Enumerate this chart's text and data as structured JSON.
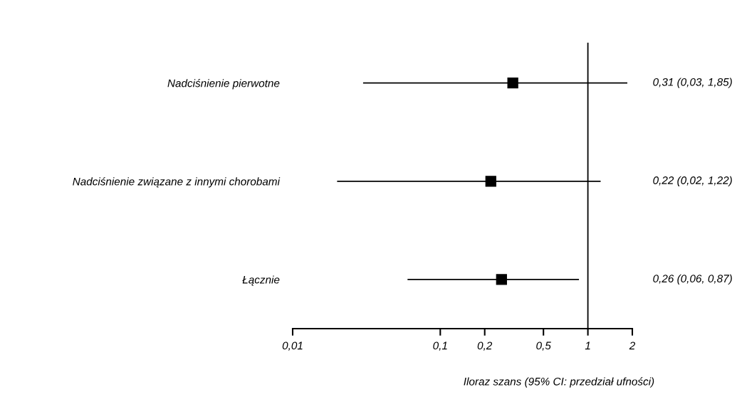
{
  "chart_data": {
    "type": "scatter",
    "orientation": "horizontal",
    "xlabel": "Iloraz szans (95% CI: przedział ufności)",
    "categories": [
      "Nadciśnienie pierwotne",
      "Nadciśnienie związane z innymi chorobami",
      "Łącznie"
    ],
    "values": [
      0.31,
      0.22,
      0.26
    ],
    "errors": [
      [
        0.03,
        1.85
      ],
      [
        0.02,
        1.22
      ],
      [
        0.06,
        0.87
      ]
    ],
    "value_labels": [
      "0,31 (0,03, 1,85)",
      "0,22 (0,02, 1,22)",
      "0,26 (0,06, 0,87)"
    ],
    "color": "#000000",
    "marker": "square",
    "log": "x",
    "xlim": [
      0.01,
      2
    ],
    "xticks": [
      {
        "value": 0.01,
        "label": "0,01"
      },
      {
        "value": 0.1,
        "label": "0,1"
      },
      {
        "value": 0.2,
        "label": "0,2"
      },
      {
        "value": 0.5,
        "label": "0,5"
      },
      1,
      2
    ],
    "ref_lines": [
      {
        "axis": "x",
        "value": 1,
        "color": "#000000"
      }
    ],
    "grid": false
  }
}
